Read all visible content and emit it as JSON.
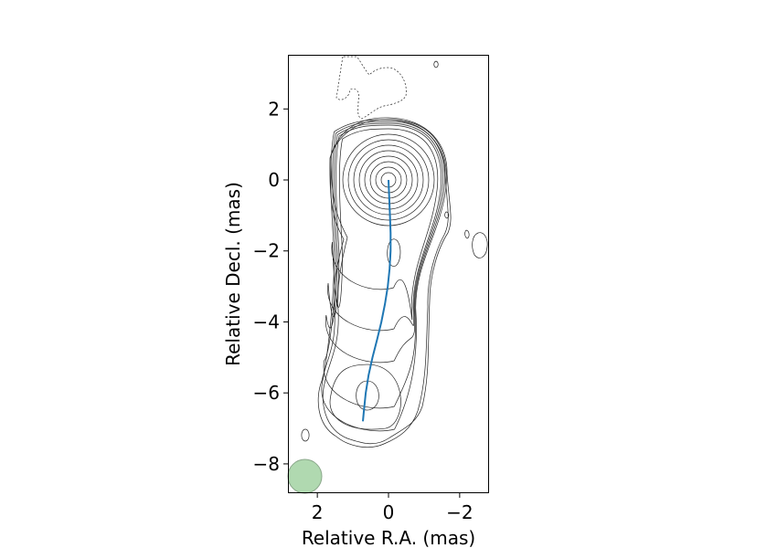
{
  "chart_data": {
    "type": "contour",
    "xlabel": "Relative R.A. (mas)",
    "ylabel": "Relative Decl. (mas)",
    "xlim": [
      2.8,
      -2.8
    ],
    "ylim": [
      -8.8,
      3.5
    ],
    "x_ticks": [
      {
        "value": 2,
        "label": "2"
      },
      {
        "value": 0,
        "label": "0"
      },
      {
        "value": -2,
        "label": "−2"
      }
    ],
    "y_ticks": [
      {
        "value": 2,
        "label": "2"
      },
      {
        "value": 0,
        "label": "0"
      },
      {
        "value": -2,
        "label": "−2"
      },
      {
        "value": -4,
        "label": "−4"
      },
      {
        "value": -6,
        "label": "−6"
      },
      {
        "value": -8,
        "label": "−8"
      }
    ],
    "grid": false,
    "jet_ridge_line": {
      "color": "#1f77b4",
      "points": [
        [
          0.0,
          0.0
        ],
        [
          -0.02,
          -0.5
        ],
        [
          -0.04,
          -1.0
        ],
        [
          -0.06,
          -1.5
        ],
        [
          -0.06,
          -2.0
        ],
        [
          -0.03,
          -2.5
        ],
        [
          0.02,
          -3.0
        ],
        [
          0.1,
          -3.5
        ],
        [
          0.2,
          -4.0
        ],
        [
          0.32,
          -4.5
        ],
        [
          0.45,
          -5.0
        ],
        [
          0.56,
          -5.5
        ],
        [
          0.64,
          -6.0
        ],
        [
          0.69,
          -6.5
        ],
        [
          0.72,
          -6.8
        ]
      ]
    },
    "components": [
      {
        "name": "core",
        "x": 0.0,
        "y": 0.0,
        "levels": 13
      },
      {
        "name": "knot",
        "x": -0.15,
        "y": -2.05
      },
      {
        "name": "knot",
        "x": 0.6,
        "y": -6.1
      }
    ],
    "negative_contour_color": "dashed",
    "beam": {
      "x": 2.35,
      "y": -8.35,
      "diameter_mas": 0.95,
      "color": "#a8d5a8"
    }
  }
}
